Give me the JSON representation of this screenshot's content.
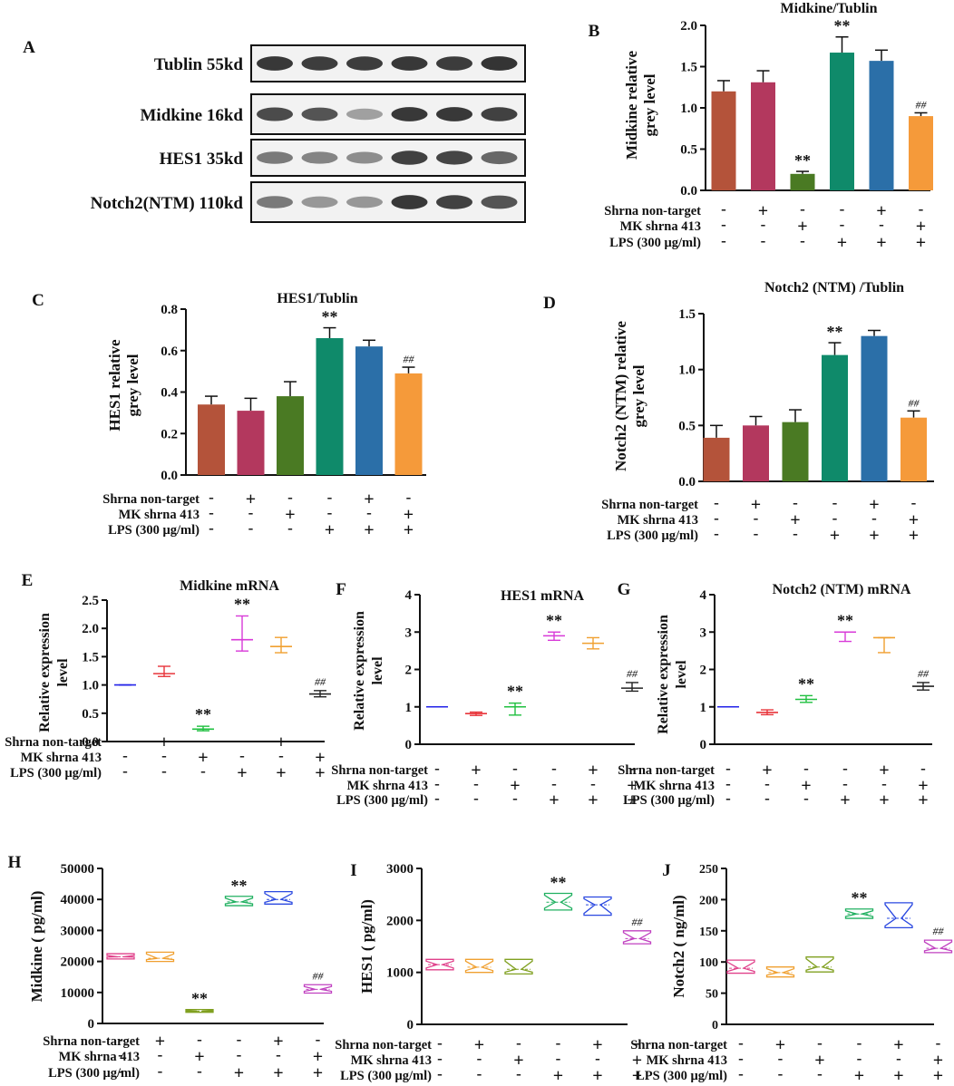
{
  "colors": {
    "ink": "#111111",
    "bars": [
      "#b4533a",
      "#b3385e",
      "#4a7a23",
      "#0f8a6a",
      "#2b6fa8",
      "#f59a3a"
    ],
    "mrna": [
      "#2323e8",
      "#e8343a",
      "#20c040",
      "#d83ad8",
      "#f0a030",
      "#222222"
    ],
    "elisa": [
      "#e0408a",
      "#f0a030",
      "#80a020",
      "#20b060",
      "#2a48e0",
      "#c040c0"
    ]
  },
  "conditions": {
    "labels": [
      "Shrna non-target",
      "MK shrna 413",
      "LPS (300 μg/ml)"
    ],
    "signs": [
      [
        "-",
        "+",
        "-",
        "-",
        "+",
        "-"
      ],
      [
        "-",
        "-",
        "+",
        "-",
        "-",
        "+"
      ],
      [
        "-",
        "-",
        "-",
        "+",
        "+",
        "+"
      ]
    ]
  },
  "blot": {
    "panel_label": "A",
    "rows": [
      {
        "label": "Tublin 55kd",
        "intensity": [
          0.95,
          0.92,
          0.92,
          0.95,
          0.93,
          0.97
        ]
      },
      {
        "label": "Midkine 16kd",
        "intensity": [
          0.85,
          0.8,
          0.4,
          0.95,
          0.95,
          0.9
        ]
      },
      {
        "label": "HES1 35kd",
        "intensity": [
          0.6,
          0.55,
          0.5,
          0.9,
          0.88,
          0.7
        ]
      },
      {
        "label": "Notch2(NTM) 110kd",
        "intensity": [
          0.6,
          0.45,
          0.45,
          0.95,
          0.9,
          0.8
        ]
      }
    ]
  },
  "chart_data": [
    {
      "panel": "B",
      "type": "bar",
      "title": "Midkine/Tublin",
      "ylabel": [
        "Midkine relative",
        "grey level"
      ],
      "ylim": [
        0,
        2.0
      ],
      "ticks": [
        "0.0",
        "0.5",
        "1.0",
        "1.5",
        "2.0"
      ],
      "values": [
        1.2,
        1.31,
        0.2,
        1.67,
        1.57,
        0.9
      ],
      "errors": [
        0.13,
        0.14,
        0.03,
        0.19,
        0.13,
        0.04
      ],
      "annotations": [
        "",
        "",
        "**",
        "**",
        "",
        "##"
      ]
    },
    {
      "panel": "C",
      "type": "bar",
      "title": "HES1/Tublin",
      "ylabel": [
        "HES1 relative",
        "grey level"
      ],
      "ylim": [
        0,
        0.8
      ],
      "ticks": [
        "0.0",
        "0.2",
        "0.4",
        "0.6",
        "0.8"
      ],
      "values": [
        0.34,
        0.31,
        0.38,
        0.66,
        0.62,
        0.49
      ],
      "errors": [
        0.04,
        0.06,
        0.07,
        0.05,
        0.03,
        0.03
      ],
      "annotations": [
        "",
        "",
        "",
        "**",
        "",
        "##"
      ]
    },
    {
      "panel": "D",
      "type": "bar",
      "title": "Notch2 (NTM) /Tublin",
      "ylabel": [
        "Notch2 (NTM) relative",
        "grey level"
      ],
      "ylim": [
        0,
        1.5
      ],
      "ticks": [
        "0.0",
        "0.5",
        "1.0",
        "1.5"
      ],
      "values": [
        0.39,
        0.5,
        0.53,
        1.13,
        1.3,
        0.57
      ],
      "errors": [
        0.11,
        0.08,
        0.11,
        0.11,
        0.05,
        0.06
      ],
      "annotations": [
        "",
        "",
        "",
        "**",
        "",
        "##"
      ]
    },
    {
      "panel": "E",
      "type": "box",
      "title": "Midkine mRNA",
      "ylabel": [
        "Relative expression",
        "level"
      ],
      "ylim": [
        0,
        2.5
      ],
      "ticks": [
        "0.0",
        "0.5",
        "1.0",
        "1.5",
        "2.0",
        "2.5"
      ],
      "boxes": [
        [
          1.0,
          1.0,
          1.0
        ],
        [
          1.15,
          1.2,
          1.33
        ],
        [
          0.19,
          0.22,
          0.27
        ],
        [
          1.6,
          1.8,
          2.22
        ],
        [
          1.57,
          1.68,
          1.84
        ],
        [
          0.79,
          0.84,
          0.9
        ]
      ],
      "annotations": [
        "",
        "",
        "**",
        "**",
        "",
        "##"
      ]
    },
    {
      "panel": "F",
      "type": "box",
      "title": "HES1 mRNA",
      "ylabel": [
        "Relative expression",
        "level"
      ],
      "ylim": [
        0,
        4
      ],
      "ticks": [
        "0",
        "1",
        "2",
        "3",
        "4"
      ],
      "boxes": [
        [
          1.0,
          1.0,
          1.0
        ],
        [
          0.77,
          0.82,
          0.86
        ],
        [
          0.78,
          1.0,
          1.1
        ],
        [
          2.78,
          2.9,
          3.0
        ],
        [
          2.55,
          2.7,
          2.85
        ],
        [
          1.42,
          1.5,
          1.65
        ]
      ],
      "annotations": [
        "",
        "",
        "**",
        "**",
        "",
        "##"
      ]
    },
    {
      "panel": "G",
      "type": "box",
      "title": "Notch2 (NTM) mRNA",
      "ylabel": [
        "Relative expression",
        "level"
      ],
      "ylim": [
        0,
        4
      ],
      "ticks": [
        "0",
        "1",
        "2",
        "3",
        "4"
      ],
      "boxes": [
        [
          1.0,
          1.0,
          1.0
        ],
        [
          0.79,
          0.85,
          0.92
        ],
        [
          1.12,
          1.2,
          1.3
        ],
        [
          2.75,
          3.0,
          3.0
        ],
        [
          2.45,
          2.85,
          2.85
        ],
        [
          1.45,
          1.55,
          1.65
        ]
      ],
      "annotations": [
        "",
        "",
        "**",
        "**",
        "",
        "##"
      ]
    },
    {
      "panel": "H",
      "type": "violin",
      "title": "",
      "ylabel": [
        "Midkine ( pg/ml)"
      ],
      "ylim": [
        0,
        50000
      ],
      "ticks": [
        "0",
        "10000",
        "20000",
        "30000",
        "40000",
        "50000"
      ],
      "violins": [
        [
          20800,
          21500,
          22500
        ],
        [
          20000,
          21000,
          23000
        ],
        [
          3600,
          4000,
          4500
        ],
        [
          38000,
          39200,
          41000
        ],
        [
          38500,
          40000,
          42500
        ],
        [
          9800,
          11000,
          12500
        ]
      ],
      "annotations": [
        "",
        "",
        "**",
        "**",
        "",
        "##"
      ]
    },
    {
      "panel": "I",
      "type": "violin",
      "title": "",
      "ylabel": [
        "HES1 ( pg/ml)"
      ],
      "ylim": [
        0,
        3000
      ],
      "ticks": [
        "0",
        "1000",
        "2000",
        "3000"
      ],
      "violins": [
        [
          1050,
          1150,
          1250
        ],
        [
          1000,
          1100,
          1250
        ],
        [
          970,
          1060,
          1250
        ],
        [
          2200,
          2350,
          2520
        ],
        [
          2100,
          2300,
          2450
        ],
        [
          1550,
          1650,
          1800
        ]
      ],
      "annotations": [
        "",
        "",
        "",
        "**",
        "",
        "##"
      ]
    },
    {
      "panel": "J",
      "type": "violin",
      "title": "",
      "ylabel": [
        "Notch2 ( ng/ml)"
      ],
      "ylim": [
        0,
        250
      ],
      "ticks": [
        "0",
        "50",
        "100",
        "150",
        "200",
        "250"
      ],
      "violins": [
        [
          82,
          90,
          103
        ],
        [
          76,
          83,
          92
        ],
        [
          84,
          92,
          108
        ],
        [
          170,
          177,
          185
        ],
        [
          155,
          170,
          195
        ],
        [
          115,
          122,
          135
        ]
      ],
      "annotations": [
        "",
        "",
        "",
        "**",
        "",
        "##"
      ]
    }
  ]
}
